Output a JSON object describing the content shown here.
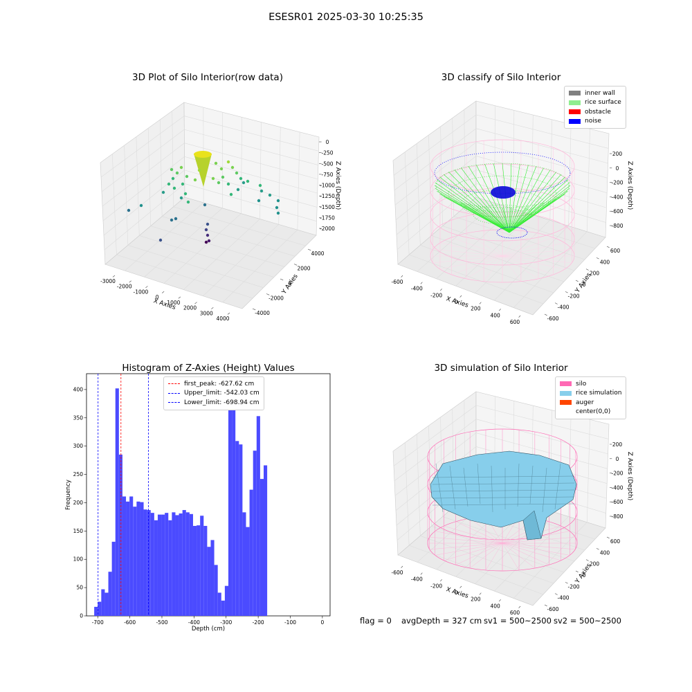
{
  "suptitle": "ESESR01 2025-03-30 10:25:35",
  "panels": {
    "raw": {
      "title": "3D Plot of Silo Interior(row data)",
      "x_ticks": [
        "-3000",
        "-2000",
        "-1000",
        "0",
        "1000",
        "2000",
        "3000",
        "4000"
      ],
      "y_ticks": [
        "4000",
        "2000",
        "0",
        "-2000",
        "-4000"
      ],
      "z_ticks": [
        "0",
        "-250",
        "-500",
        "-750",
        "-1000",
        "-1250",
        "-1500",
        "-1750",
        "-2000"
      ],
      "xlabel": "X Axies",
      "ylabel": "Y Axies",
      "zlabel": "Z Axies (Depth)"
    },
    "classify": {
      "title": "3D classify of Silo Interior",
      "x_ticks": [
        "-600",
        "-400",
        "-200",
        "0",
        "200",
        "400",
        "600"
      ],
      "y_ticks": [
        "600",
        "400",
        "200",
        "0",
        "-200",
        "-400",
        "-600"
      ],
      "z_ticks": [
        "200",
        "0",
        "-200",
        "-400",
        "-600",
        "-800"
      ],
      "xlabel": "X Axies",
      "ylabel": "Y Axies",
      "zlabel": "Z Axies (Depth)",
      "legend": [
        {
          "label": "inner wall",
          "color": "#808080"
        },
        {
          "label": "rice surface",
          "color": "#90ee90"
        },
        {
          "label": "obstacle",
          "color": "#ff0000"
        },
        {
          "label": "noise",
          "color": "#0000ff"
        }
      ]
    },
    "simulation": {
      "title": "3D simulation of Silo Interior",
      "x_ticks": [
        "-600",
        "-400",
        "-200",
        "0",
        "200",
        "400",
        "600"
      ],
      "y_ticks": [
        "600",
        "400",
        "200",
        "0",
        "-200",
        "-400",
        "-600"
      ],
      "z_ticks": [
        "200",
        "0",
        "-200",
        "-400",
        "-600",
        "-800"
      ],
      "xlabel": "X Axies",
      "ylabel": "Y Axies",
      "zlabel": "Z Axies (Depth)",
      "legend": [
        {
          "label": "silo",
          "color": "#ff69b4"
        },
        {
          "label": "rice simulation",
          "color": "#87ceeb"
        },
        {
          "label": "auger",
          "color": "#ff4500"
        },
        {
          "label": "center(0,0)",
          "color": "#ffffff"
        }
      ]
    }
  },
  "status": {
    "flag": "flag = 0",
    "avg_depth": "avgDepth = 327 cm",
    "sv1": "sv1 = 500~2500",
    "sv2": "sv2 = 500~2500"
  },
  "colors": {
    "histogram": "#4b4bff",
    "peak_line": "#ff0000",
    "limit_line": "#0000ff"
  },
  "chart_data": [
    {
      "type": "histogram",
      "title": "Histogram of Z-Axies (Height) Values",
      "xlabel": "Depth (cm)",
      "ylabel": "Frequency",
      "xlim": [
        -735,
        24
      ],
      "ylim": [
        0,
        428
      ],
      "x_ticks": [
        -700,
        -600,
        -500,
        -400,
        -300,
        -200,
        -100,
        0
      ],
      "y_ticks": [
        0,
        50,
        100,
        150,
        200,
        250,
        300,
        350,
        400
      ],
      "bin_start": -711,
      "bin_width": 11.0,
      "counts": [
        16,
        25,
        47,
        41,
        78,
        131,
        402,
        285,
        211,
        202,
        211,
        193,
        202,
        201,
        188,
        187,
        182,
        169,
        179,
        179,
        182,
        169,
        183,
        178,
        181,
        187,
        183,
        180,
        159,
        160,
        177,
        159,
        122,
        134,
        90,
        41,
        27,
        53,
        386,
        408,
        309,
        303,
        183,
        157,
        223,
        292,
        353,
        242,
        266
      ],
      "vlines": [
        {
          "x": -627.62,
          "label": "first_peak: -627.62 cm",
          "color": "#ff0000"
        },
        {
          "x": -542.03,
          "label": "Upper_limit: -542.03 cm",
          "color": "#0000ff"
        },
        {
          "x": -698.94,
          "label": "Lower_limit: -698.94 cm",
          "color": "#0000ff"
        }
      ],
      "legend_position": "upper-center"
    }
  ]
}
